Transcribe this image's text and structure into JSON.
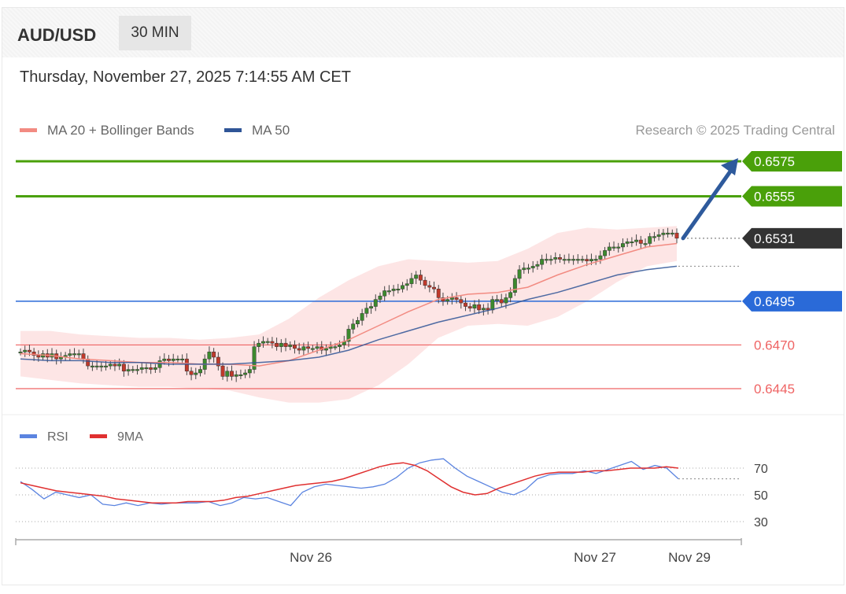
{
  "header": {
    "pair": "AUD/USD",
    "timeframe": "30 MIN",
    "datetime": "Thursday, November 27, 2025 7:14:55 AM CET"
  },
  "legend": {
    "ma20": {
      "label": "MA 20 + Bollinger Bands",
      "color": "#f28b82"
    },
    "ma50": {
      "label": "MA 50",
      "color": "#2f5597"
    },
    "credit": "Research © 2025 Trading Central"
  },
  "colors": {
    "resistance": "#4aa00a",
    "support": "#ef6464",
    "pivot": "#2a6ad8",
    "current": "#333333",
    "arrow": "#2e5a9c",
    "bull_candle": "#3c8a2e",
    "bear_candle": "#c0392b",
    "bollinger_fill": "#fcdcdc",
    "rsi": "#5b84e0",
    "rsi_ma": "#e03030"
  },
  "chart_data": [
    {
      "type": "line",
      "title": "AUD/USD 30 MIN",
      "xlabel": "",
      "ylabel": "",
      "ylim": [
        0.6432,
        0.659
      ],
      "x_tick_labels": [
        "Nov 26",
        "Nov 27",
        "Nov 29"
      ],
      "grid": false,
      "legend_position": "top-left",
      "levels": [
        {
          "label": "0.6575",
          "value": 0.6575,
          "kind": "resistance"
        },
        {
          "label": "0.6555",
          "value": 0.6555,
          "kind": "resistance"
        },
        {
          "label": "0.6531",
          "value": 0.6531,
          "kind": "current"
        },
        {
          "label": "0.6495",
          "value": 0.6495,
          "kind": "pivot"
        },
        {
          "label": "0.6470",
          "value": 0.647,
          "kind": "support"
        },
        {
          "label": "0.6445",
          "value": 0.6445,
          "kind": "support"
        }
      ],
      "ma50_end": 0.6515,
      "close_series": [
        0.6466,
        0.6467,
        0.6466,
        0.6464,
        0.6463,
        0.6465,
        0.6463,
        0.6465,
        0.6462,
        0.6463,
        0.6464,
        0.6465,
        0.6465,
        0.6465,
        0.6462,
        0.6458,
        0.6458,
        0.6458,
        0.6458,
        0.6458,
        0.6459,
        0.6458,
        0.6459,
        0.6455,
        0.6456,
        0.6456,
        0.6456,
        0.6457,
        0.6457,
        0.6456,
        0.6457,
        0.6461,
        0.6462,
        0.6461,
        0.6462,
        0.6462,
        0.6462,
        0.6455,
        0.6453,
        0.6454,
        0.6456,
        0.6462,
        0.6466,
        0.6463,
        0.6458,
        0.6452,
        0.6455,
        0.6452,
        0.6453,
        0.6453,
        0.6454,
        0.6456,
        0.6469,
        0.6471,
        0.6472,
        0.6472,
        0.6471,
        0.6469,
        0.6471,
        0.6469,
        0.647,
        0.6468,
        0.6467,
        0.6469,
        0.6468,
        0.6468,
        0.6469,
        0.6467,
        0.6468,
        0.6469,
        0.6469,
        0.647,
        0.6472,
        0.6479,
        0.6482,
        0.6484,
        0.6488,
        0.6491,
        0.6492,
        0.6496,
        0.6498,
        0.6501,
        0.6501,
        0.6502,
        0.6502,
        0.6504,
        0.6505,
        0.6508,
        0.651,
        0.6507,
        0.6504,
        0.6503,
        0.6502,
        0.6497,
        0.6495,
        0.6496,
        0.6497,
        0.6496,
        0.6494,
        0.6492,
        0.6491,
        0.6493,
        0.649,
        0.6491,
        0.649,
        0.6496,
        0.6496,
        0.6494,
        0.6497,
        0.65,
        0.6508,
        0.6513,
        0.6514,
        0.6514,
        0.6515,
        0.6516,
        0.6519,
        0.6519,
        0.6519,
        0.652,
        0.6519,
        0.6519,
        0.6519,
        0.6519,
        0.6519,
        0.6519,
        0.6518,
        0.6519,
        0.6519,
        0.6521,
        0.6524,
        0.6526,
        0.6526,
        0.6526,
        0.6528,
        0.6529,
        0.6529,
        0.653,
        0.6528,
        0.6528,
        0.6532,
        0.6532,
        0.6533,
        0.6534,
        0.6534,
        0.6534,
        0.6531
      ],
      "series": [
        {
          "name": "MA 20 + Bollinger Bands",
          "values": [
            0.6465,
            0.6464,
            0.6462,
            0.6461,
            0.646,
            0.646,
            0.6459,
            0.6459,
            0.6458,
            0.6461,
            0.6467,
            0.6473,
            0.6481,
            0.6489,
            0.6496,
            0.6499,
            0.65,
            0.6503,
            0.651,
            0.6516,
            0.6521,
            0.6526,
            0.6528
          ]
        },
        {
          "name": "MA 50",
          "values": [
            0.6462,
            0.6461,
            0.6461,
            0.646,
            0.646,
            0.6459,
            0.6459,
            0.6459,
            0.646,
            0.6461,
            0.6463,
            0.6467,
            0.6473,
            0.6478,
            0.6483,
            0.6487,
            0.6491,
            0.6496,
            0.65,
            0.6505,
            0.651,
            0.6513,
            0.6515
          ]
        }
      ]
    },
    {
      "type": "line",
      "title": "",
      "ylim": [
        20,
        80
      ],
      "y_ticks": [
        30,
        50,
        70
      ],
      "legend_position": "top-left",
      "series": [
        {
          "name": "RSI",
          "values": [
            60,
            54,
            47,
            52,
            50,
            48,
            50,
            43,
            42,
            44,
            42,
            44,
            43,
            44,
            44,
            44,
            45,
            42,
            44,
            48,
            47,
            48,
            45,
            42,
            52,
            56,
            58,
            57,
            56,
            55,
            56,
            58,
            63,
            70,
            74,
            76,
            77,
            70,
            64,
            60,
            56,
            52,
            50,
            54,
            62,
            65,
            66,
            66,
            68,
            66,
            69,
            72,
            75,
            69,
            72,
            70,
            62
          ]
        },
        {
          "name": "9MA",
          "values": [
            59,
            57,
            55,
            53,
            52,
            51,
            50,
            49,
            47,
            46,
            45,
            44,
            44,
            44,
            45,
            45,
            45,
            46,
            48,
            49,
            51,
            53,
            55,
            57,
            58,
            59,
            60,
            62,
            65,
            68,
            71,
            73,
            74,
            72,
            68,
            62,
            56,
            52,
            50,
            51,
            55,
            58,
            61,
            64,
            66,
            67,
            67,
            67,
            68,
            68,
            69,
            70,
            70,
            70,
            71,
            70
          ]
        }
      ]
    }
  ],
  "rsi_legend": {
    "rsi": "RSI",
    "ma": "9MA"
  }
}
